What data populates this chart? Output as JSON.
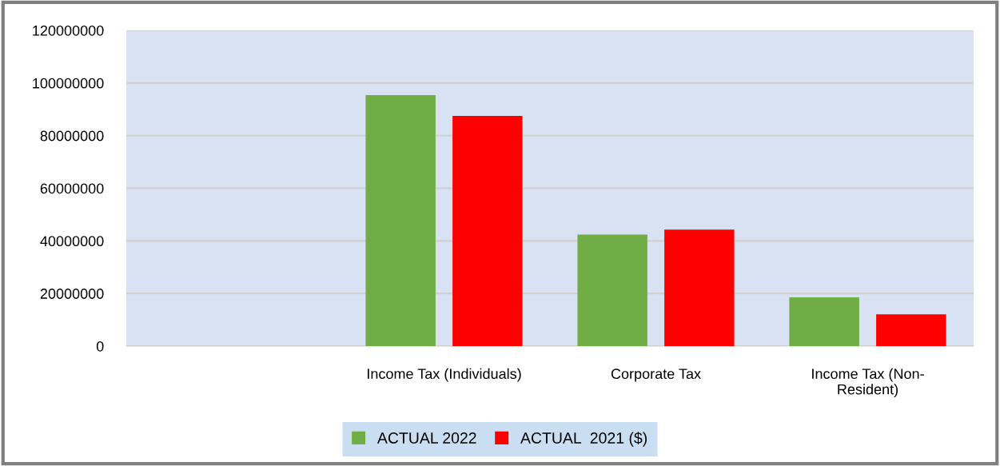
{
  "chart_data": {
    "type": "bar",
    "categories": [
      null,
      "Income Tax (Individuals)",
      "Corporate Tax",
      "Income Tax (Non-\nResident)"
    ],
    "series": [
      {
        "name": "ACTUAL 2022",
        "color": "#70ad47",
        "values": [
          null,
          95400000,
          42400000,
          18500000
        ]
      },
      {
        "name": "ACTUAL  2021 ($)",
        "color": "#ff0000",
        "values": [
          null,
          87500000,
          44300000,
          12100000
        ]
      }
    ],
    "ylim": [
      0,
      120000000
    ],
    "yticks": [
      0,
      20000000,
      40000000,
      60000000,
      80000000,
      100000000,
      120000000
    ],
    "grid": "y",
    "legend": "bottom"
  }
}
